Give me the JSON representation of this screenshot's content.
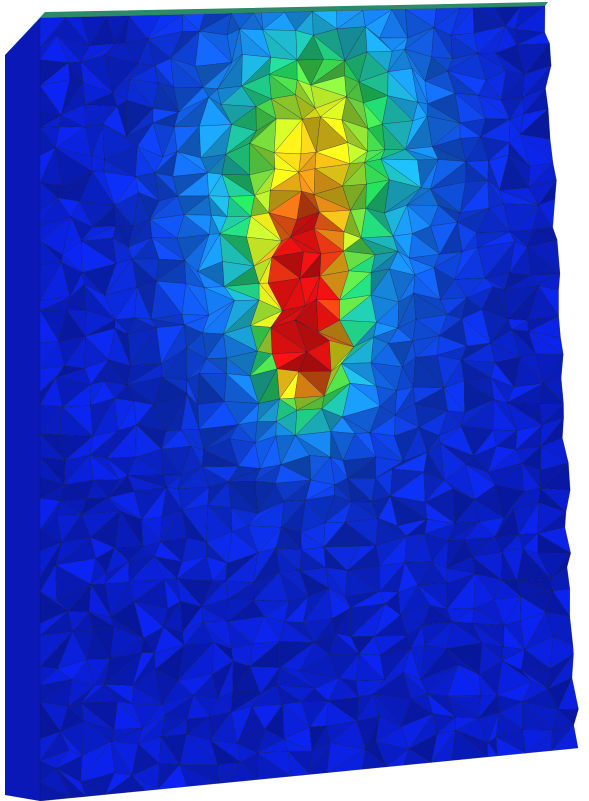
{
  "scene": {
    "subject": "finite-element-mesh-slab",
    "colormap": {
      "low": "#0a1fd6",
      "mid_low": "#1aa0ff",
      "mid": "#22d85a",
      "mid_high": "#f2f21a",
      "high": "#e01010"
    },
    "edge_color": "#0b1030",
    "side_face_color": "#0a18b8",
    "top_face_color": "#2a8a6a",
    "background_color": "#ffffff"
  }
}
